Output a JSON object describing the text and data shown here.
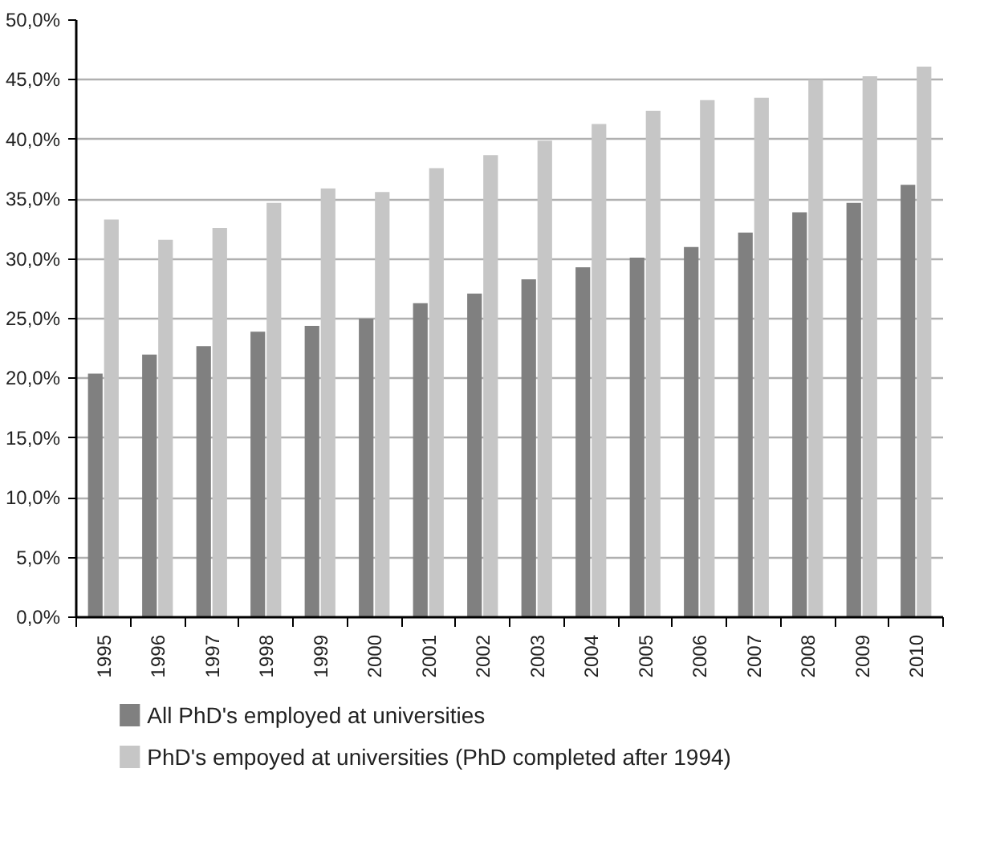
{
  "chart_data": {
    "type": "bar",
    "categories": [
      "1995",
      "1996",
      "1997",
      "1998",
      "1999",
      "2000",
      "2001",
      "2002",
      "2003",
      "2004",
      "2005",
      "2006",
      "2007",
      "2008",
      "2009",
      "2010"
    ],
    "series": [
      {
        "name": "All PhD's employed at universities",
        "color": "#808080",
        "values": [
          20.4,
          22.0,
          22.7,
          23.9,
          24.4,
          25.0,
          26.3,
          27.1,
          28.3,
          29.3,
          30.1,
          31.0,
          32.2,
          33.9,
          34.7,
          36.2
        ]
      },
      {
        "name": "PhD's empoyed at universities (PhD completed after 1994)",
        "color": "#c6c6c6",
        "values": [
          33.3,
          31.6,
          32.6,
          34.7,
          35.9,
          35.6,
          37.6,
          38.7,
          39.9,
          41.3,
          42.4,
          43.3,
          43.5,
          45.0,
          45.3,
          46.1
        ]
      }
    ],
    "ylim": [
      0,
      50
    ],
    "yticks": [
      {
        "value": 0,
        "label": "0,0%"
      },
      {
        "value": 5,
        "label": "5,0%"
      },
      {
        "value": 10,
        "label": "10,0%"
      },
      {
        "value": 15,
        "label": "15,0%"
      },
      {
        "value": 20,
        "label": "20,0%"
      },
      {
        "value": 25,
        "label": "25,0%"
      },
      {
        "value": 30,
        "label": "30,0%"
      },
      {
        "value": 35,
        "label": "35,0%"
      },
      {
        "value": 40,
        "label": "40,0%"
      },
      {
        "value": 45,
        "label": "45,0%"
      },
      {
        "value": 50,
        "label": "50,0%"
      }
    ],
    "grid": "y",
    "legend": "bottom"
  }
}
